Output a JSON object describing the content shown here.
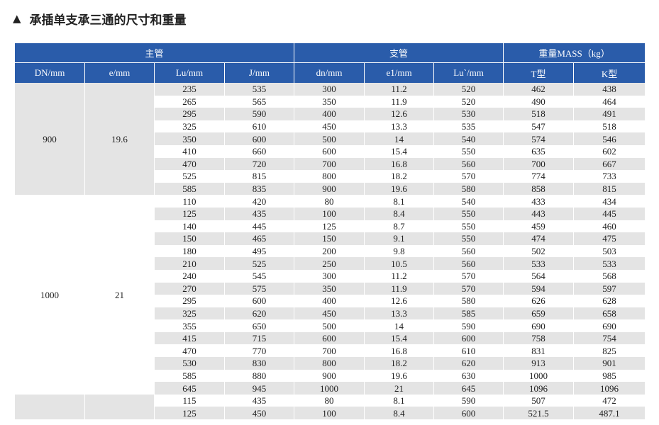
{
  "title": "承插单支承三通的尺寸和重量",
  "header": {
    "groups": [
      "主管",
      "支管",
      "重量MASS（kg）"
    ],
    "columns": [
      "DN/mm",
      "e/mm",
      "Lu/mm",
      "J/mm",
      "dn/mm",
      "e1/mm",
      "Lu`/mm",
      "T型",
      "K型"
    ]
  },
  "groups": [
    {
      "dn": "900",
      "e": "19.6",
      "rows": [
        [
          "235",
          "535",
          "300",
          "11.2",
          "520",
          "462",
          "438"
        ],
        [
          "265",
          "565",
          "350",
          "11.9",
          "520",
          "490",
          "464"
        ],
        [
          "295",
          "590",
          "400",
          "12.6",
          "530",
          "518",
          "491"
        ],
        [
          "325",
          "610",
          "450",
          "13.3",
          "535",
          "547",
          "518"
        ],
        [
          "350",
          "600",
          "500",
          "14",
          "540",
          "574",
          "546"
        ],
        [
          "410",
          "660",
          "600",
          "15.4",
          "550",
          "635",
          "602"
        ],
        [
          "470",
          "720",
          "700",
          "16.8",
          "560",
          "700",
          "667"
        ],
        [
          "525",
          "815",
          "800",
          "18.2",
          "570",
          "774",
          "733"
        ],
        [
          "585",
          "835",
          "900",
          "19.6",
          "580",
          "858",
          "815"
        ]
      ]
    },
    {
      "dn": "1000",
      "e": "21",
      "rows": [
        [
          "110",
          "420",
          "80",
          "8.1",
          "540",
          "433",
          "434"
        ],
        [
          "125",
          "435",
          "100",
          "8.4",
          "550",
          "443",
          "445"
        ],
        [
          "140",
          "445",
          "125",
          "8.7",
          "550",
          "459",
          "460"
        ],
        [
          "150",
          "465",
          "150",
          "9.1",
          "550",
          "474",
          "475"
        ],
        [
          "180",
          "495",
          "200",
          "9.8",
          "560",
          "502",
          "503"
        ],
        [
          "210",
          "525",
          "250",
          "10.5",
          "560",
          "533",
          "533"
        ],
        [
          "240",
          "545",
          "300",
          "11.2",
          "570",
          "564",
          "568"
        ],
        [
          "270",
          "575",
          "350",
          "11.9",
          "570",
          "594",
          "597"
        ],
        [
          "295",
          "600",
          "400",
          "12.6",
          "580",
          "626",
          "628"
        ],
        [
          "325",
          "620",
          "450",
          "13.3",
          "585",
          "659",
          "658"
        ],
        [
          "355",
          "650",
          "500",
          "14",
          "590",
          "690",
          "690"
        ],
        [
          "415",
          "715",
          "600",
          "15.4",
          "600",
          "758",
          "754"
        ],
        [
          "470",
          "770",
          "700",
          "16.8",
          "610",
          "831",
          "825"
        ],
        [
          "530",
          "830",
          "800",
          "18.2",
          "620",
          "913",
          "901"
        ],
        [
          "585",
          "880",
          "900",
          "19.6",
          "630",
          "1000",
          "985"
        ],
        [
          "645",
          "945",
          "1000",
          "21",
          "645",
          "1096",
          "1096"
        ]
      ]
    },
    {
      "dn": "",
      "e": "",
      "rows": [
        [
          "115",
          "435",
          "80",
          "8.1",
          "590",
          "507",
          "472"
        ],
        [
          "125",
          "450",
          "100",
          "8.4",
          "600",
          "521.5",
          "487.1"
        ]
      ]
    }
  ]
}
